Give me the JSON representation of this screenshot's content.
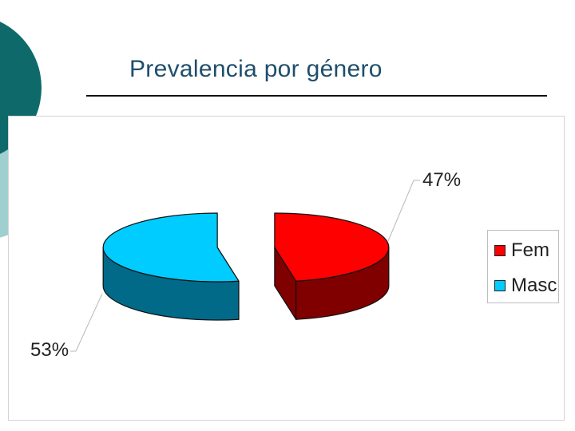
{
  "slide": {
    "title": "Prevalencia por género"
  },
  "colors": {
    "fem_top": "#ff0000",
    "fem_side": "#800000",
    "masc_top": "#00ccff",
    "masc_side": "#006a88",
    "deco_dark": "#0e6a6a",
    "deco_light": "#9fcfcf"
  },
  "chart_data": {
    "type": "pie",
    "style": "3d-exploded",
    "categories": [
      "Fem",
      "Masc"
    ],
    "values": [
      47,
      53
    ],
    "data_labels": [
      "47%",
      "53%"
    ],
    "legend": {
      "position": "right",
      "entries": [
        "Fem",
        "Masc"
      ]
    }
  }
}
